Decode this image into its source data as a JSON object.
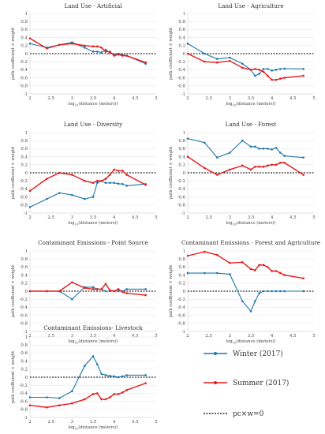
{
  "legend": [
    {
      "name": "Winter (2017)",
      "color": "#1f77a8"
    },
    {
      "name": "Summer (2017)",
      "color": "#e41a1c"
    },
    {
      "name": "pc×w=0",
      "color": "#000000"
    }
  ],
  "axis": {
    "xlabel": "log₁₀(distance (meters))",
    "ylabel": "path coefficient × weight"
  },
  "chart_data": [
    {
      "type": "line",
      "title": "Land Use - Artificial",
      "x": [
        2,
        2.4,
        2.7,
        3,
        3.3,
        3.5,
        3.6,
        3.7,
        3.8,
        3.9,
        4,
        4.1,
        4.2,
        4.3,
        4.75
      ],
      "xlim": [
        2,
        5
      ],
      "ylim": [
        -1,
        1
      ],
      "series": [
        {
          "name": "Winter (2017)",
          "values": [
            0.25,
            0.15,
            0.22,
            0.28,
            0.15,
            0.05,
            0.05,
            0.03,
            0.1,
            0.02,
            -0.02,
            0.0,
            -0.03,
            -0.05,
            -0.25
          ]
        },
        {
          "name": "Summer (2017)",
          "values": [
            0.38,
            0.13,
            0.22,
            0.25,
            0.2,
            0.18,
            0.18,
            0.15,
            0.05,
            0.05,
            -0.05,
            -0.02,
            -0.05,
            -0.05,
            -0.22
          ]
        }
      ]
    },
    {
      "type": "line",
      "title": "Land Use - Agriculture",
      "x": [
        2,
        2.4,
        2.7,
        3,
        3.3,
        3.5,
        3.6,
        3.7,
        3.8,
        3.9,
        4,
        4.1,
        4.2,
        4.3,
        4.75
      ],
      "xlim": [
        2,
        5
      ],
      "ylim": [
        -1,
        1
      ],
      "series": [
        {
          "name": "Winter (2017)",
          "values": [
            0.25,
            0.0,
            -0.13,
            -0.1,
            -0.25,
            -0.4,
            -0.55,
            -0.5,
            -0.38,
            -0.38,
            -0.42,
            -0.4,
            -0.38,
            -0.37,
            -0.38
          ]
        },
        {
          "name": "Summer (2017)",
          "values": [
            0.0,
            -0.2,
            -0.22,
            -0.18,
            -0.35,
            -0.4,
            -0.38,
            -0.4,
            -0.45,
            -0.55,
            -0.65,
            -0.65,
            -0.62,
            -0.6,
            -0.55
          ]
        }
      ]
    },
    {
      "type": "line",
      "title": "Land Use - Diversity",
      "x": [
        2,
        2.4,
        2.7,
        3,
        3.3,
        3.5,
        3.6,
        3.7,
        3.8,
        3.9,
        4,
        4.1,
        4.2,
        4.3,
        4.75
      ],
      "xlim": [
        2,
        5
      ],
      "ylim": [
        -1,
        1
      ],
      "series": [
        {
          "name": "Winter (2017)",
          "values": [
            -0.85,
            -0.65,
            -0.5,
            -0.55,
            -0.65,
            -0.6,
            -0.25,
            -0.2,
            -0.25,
            -0.25,
            -0.25,
            -0.27,
            -0.28,
            -0.32,
            -0.28
          ]
        },
        {
          "name": "Summer (2017)",
          "values": [
            -0.45,
            -0.15,
            0.0,
            -0.05,
            -0.2,
            -0.25,
            -0.2,
            -0.2,
            -0.15,
            -0.05,
            0.08,
            0.05,
            0.05,
            -0.05,
            -0.3
          ]
        }
      ]
    },
    {
      "type": "line",
      "title": "Land Use - Forest",
      "x": [
        2,
        2.4,
        2.7,
        3,
        3.3,
        3.5,
        3.6,
        3.7,
        3.8,
        3.9,
        4,
        4.1,
        4.2,
        4.3,
        4.75
      ],
      "xlim": [
        2,
        5
      ],
      "ylim": [
        -1,
        1
      ],
      "series": [
        {
          "name": "Winter (2017)",
          "values": [
            0.85,
            0.75,
            0.38,
            0.5,
            0.8,
            0.65,
            0.65,
            0.6,
            0.6,
            0.6,
            0.58,
            0.62,
            0.5,
            0.42,
            0.38
          ]
        },
        {
          "name": "Summer (2017)",
          "values": [
            0.4,
            0.12,
            -0.05,
            0.08,
            0.18,
            0.08,
            0.15,
            0.15,
            0.15,
            0.18,
            0.2,
            0.2,
            0.25,
            0.25,
            -0.05
          ]
        }
      ]
    },
    {
      "type": "line",
      "title": "Contaminant Emissions - Point Source",
      "x": [
        2,
        2.4,
        2.7,
        3,
        3.3,
        3.5,
        3.6,
        3.7,
        3.8,
        3.9,
        4,
        4.1,
        4.2,
        4.3,
        4.75
      ],
      "xlim": [
        2,
        5
      ],
      "ylim": [
        -1,
        1
      ],
      "series": [
        {
          "name": "Winter (2017)",
          "values": [
            0.0,
            0.0,
            0.0,
            -0.2,
            0.1,
            0.1,
            0.05,
            0.05,
            0.0,
            0.0,
            0.0,
            0.0,
            0.0,
            0.05,
            0.05
          ]
        },
        {
          "name": "Summer (2017)",
          "values": [
            0.0,
            0.0,
            0.0,
            0.22,
            0.08,
            0.05,
            0.05,
            0.05,
            0.18,
            0.02,
            0.0,
            0.05,
            -0.02,
            -0.05,
            -0.1
          ]
        }
      ]
    },
    {
      "type": "line",
      "title": "Contaminant Emissions - Forest and Agriculture",
      "x": [
        2,
        2.4,
        2.7,
        3,
        3.3,
        3.5,
        3.6,
        3.7,
        3.8,
        3.9,
        4,
        4.1,
        4.2,
        4.3,
        4.75
      ],
      "xlim": [
        2,
        5
      ],
      "ylim": [
        -1,
        1
      ],
      "series": [
        {
          "name": "Winter (2017)",
          "values": [
            0.45,
            0.45,
            0.45,
            0.42,
            -0.25,
            -0.5,
            -0.25,
            -0.05,
            0.0,
            0.0,
            0.0,
            0.0,
            0.0,
            0.0,
            0.0
          ]
        },
        {
          "name": "Summer (2017)",
          "values": [
            0.88,
            0.98,
            0.9,
            0.7,
            0.72,
            0.55,
            0.52,
            0.65,
            0.65,
            0.6,
            0.5,
            0.5,
            0.45,
            0.4,
            0.32
          ]
        }
      ]
    },
    {
      "type": "line",
      "title": "Contaminant Emissions- Livestock",
      "x": [
        2,
        2.4,
        2.7,
        3,
        3.3,
        3.5,
        3.6,
        3.7,
        3.8,
        3.9,
        4,
        4.1,
        4.2,
        4.3,
        4.75
      ],
      "xlim": [
        2,
        5
      ],
      "ylim": [
        -1,
        1
      ],
      "series": [
        {
          "name": "Winter (2017)",
          "values": [
            -0.5,
            -0.5,
            -0.52,
            -0.35,
            0.28,
            0.52,
            0.32,
            0.08,
            0.05,
            0.03,
            0.02,
            0.0,
            0.02,
            0.05,
            0.05
          ]
        },
        {
          "name": "Summer (2017)",
          "values": [
            -0.7,
            -0.75,
            -0.7,
            -0.65,
            -0.55,
            -0.42,
            -0.4,
            -0.55,
            -0.55,
            -0.5,
            -0.42,
            -0.42,
            -0.38,
            -0.32,
            -0.15
          ]
        }
      ]
    }
  ]
}
